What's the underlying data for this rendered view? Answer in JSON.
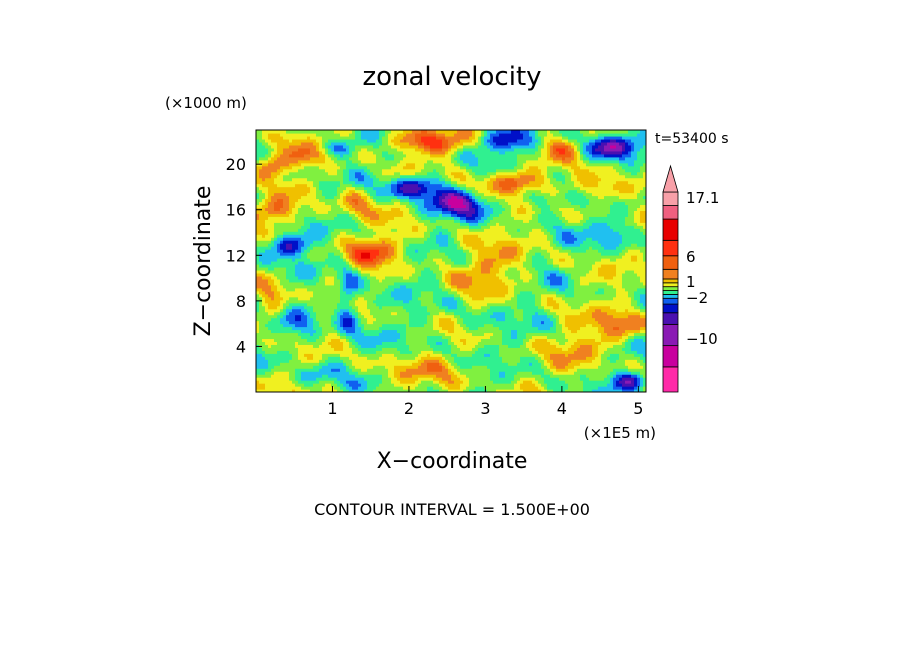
{
  "chart_data": {
    "type": "heatmap",
    "title": "zonal velocity",
    "xlabel": "X−coordinate",
    "ylabel": "Z−coordinate",
    "x_unit": "(×1E5 m)",
    "y_unit": "(×1000 m)",
    "time_label": "t=53400 s",
    "footer": "CONTOUR INTERVAL = 1.500E+00",
    "xlim": [
      0,
      5.1
    ],
    "ylim": [
      0,
      23
    ],
    "x_ticks": [
      "1",
      "2",
      "3",
      "4",
      "5"
    ],
    "y_ticks": [
      "4",
      "8",
      "12",
      "16",
      "20"
    ],
    "contour_interval": 1.5,
    "colorbar": {
      "labels": [
        "17.1",
        "6",
        "1",
        "−2",
        "−10"
      ],
      "colors": [
        "#ff2aa8",
        "#c8009e",
        "#8a1ab4",
        "#4a10b0",
        "#0010c8",
        "#1060f0",
        "#20c0f0",
        "#30f090",
        "#80f040",
        "#f0f020",
        "#f0c000",
        "#f08020",
        "#f06010",
        "#ff3010",
        "#e80000",
        "#f06080",
        "#f8a0a8"
      ]
    },
    "value_range": [
      -15,
      18
    ],
    "fields": {
      "background": 1.5,
      "blobs": [
        {
          "x": 0.6,
          "z": 21,
          "sx": 0.35,
          "sz": 1.3,
          "v": 5
        },
        {
          "x": 0.2,
          "z": 20,
          "sx": 0.2,
          "sz": 1.0,
          "v": 7
        },
        {
          "x": 1.0,
          "z": 21.5,
          "sx": 0.3,
          "sz": 0.8,
          "v": -6
        },
        {
          "x": 2.2,
          "z": 22,
          "sx": 0.5,
          "sz": 1.0,
          "v": 9
        },
        {
          "x": 3.3,
          "z": 22,
          "sx": 0.4,
          "sz": 1.0,
          "v": -8
        },
        {
          "x": 4.6,
          "z": 21.5,
          "sx": 0.4,
          "sz": 1.0,
          "v": -9
        },
        {
          "x": 4.0,
          "z": 21.5,
          "sx": 0.3,
          "sz": 0.9,
          "v": 6
        },
        {
          "x": 2.1,
          "z": 18,
          "sx": 0.35,
          "sz": 1.0,
          "v": -11
        },
        {
          "x": 2.6,
          "z": 16.5,
          "sx": 0.35,
          "sz": 1.2,
          "v": -10
        },
        {
          "x": 3.3,
          "z": 18.5,
          "sx": 0.4,
          "sz": 1.0,
          "v": 8
        },
        {
          "x": 4.5,
          "z": 18,
          "sx": 0.4,
          "sz": 1.2,
          "v": 6
        },
        {
          "x": 3.8,
          "z": 17,
          "sx": 0.3,
          "sz": 0.9,
          "v": -5
        },
        {
          "x": 0.25,
          "z": 16,
          "sx": 0.3,
          "sz": 1.0,
          "v": 7
        },
        {
          "x": 1.3,
          "z": 16.5,
          "sx": 0.25,
          "sz": 1.5,
          "v": 5
        },
        {
          "x": 0.4,
          "z": 13,
          "sx": 0.3,
          "sz": 1.0,
          "v": -9
        },
        {
          "x": 1.5,
          "z": 12.5,
          "sx": 0.35,
          "sz": 1.2,
          "v": 8
        },
        {
          "x": 4.7,
          "z": 14,
          "sx": 0.3,
          "sz": 1.2,
          "v": -6
        },
        {
          "x": 3.0,
          "z": 11,
          "sx": 0.5,
          "sz": 2.0,
          "v": 4
        },
        {
          "x": 1.2,
          "z": 8,
          "sx": 0.15,
          "sz": 3.0,
          "v": -7
        },
        {
          "x": 0.2,
          "z": 8,
          "sx": 0.2,
          "sz": 2.0,
          "v": 6
        },
        {
          "x": 0.6,
          "z": 6,
          "sx": 0.3,
          "sz": 1.5,
          "v": -5
        },
        {
          "x": 2.6,
          "z": 6,
          "sx": 0.6,
          "sz": 2.0,
          "v": -1.5
        },
        {
          "x": 4.8,
          "z": 6,
          "sx": 0.3,
          "sz": 1.4,
          "v": 7
        },
        {
          "x": 4.3,
          "z": 4,
          "sx": 0.4,
          "sz": 1.5,
          "v": 4
        },
        {
          "x": 4.9,
          "z": 1,
          "sx": 0.25,
          "sz": 0.8,
          "v": -8
        },
        {
          "x": 2.2,
          "z": 2,
          "sx": 0.7,
          "sz": 1.2,
          "v": 3
        },
        {
          "x": 0.8,
          "z": 1.5,
          "sx": 0.3,
          "sz": 1.0,
          "v": -4
        }
      ]
    }
  }
}
